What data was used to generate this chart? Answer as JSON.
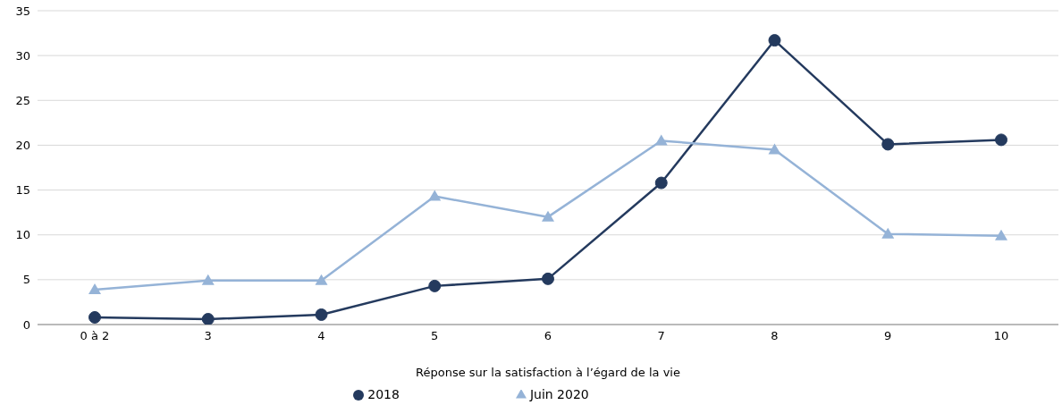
{
  "chart_data": {
    "type": "line",
    "xlabel": "Réponse sur la satisfaction à l’égard de la vie",
    "categories": [
      "0 à 2",
      "3",
      "4",
      "5",
      "6",
      "7",
      "8",
      "9",
      "10"
    ],
    "ylim": [
      0,
      35
    ],
    "yticks": [
      0,
      5,
      10,
      15,
      20,
      25,
      30,
      35
    ],
    "grid": "y",
    "legend": "bottom",
    "line_style": "solid",
    "series": [
      {
        "name": "2018",
        "color": "#243a5e",
        "marker": "circle",
        "values": [
          0.8,
          0.6,
          1.1,
          4.3,
          5.1,
          15.8,
          31.7,
          20.1,
          20.6
        ]
      },
      {
        "name": "Juin 2020",
        "color": "#95b3d7",
        "marker": "triangle",
        "values": [
          3.9,
          4.9,
          4.9,
          14.3,
          12.0,
          20.5,
          19.5,
          10.1,
          9.9
        ]
      }
    ]
  }
}
